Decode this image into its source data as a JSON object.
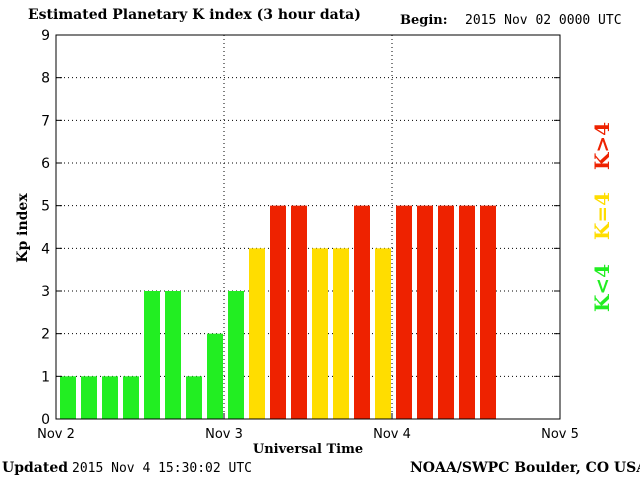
{
  "page": {
    "title": "Estimated Planetary K index (3 hour data)",
    "begin_label": "Begin:",
    "begin_value": "2015 Nov 02 0000 UTC",
    "updated_label": "Updated",
    "updated_value": "2015 Nov  4 15:30:02 UTC",
    "credit": "NOAA/SWPC Boulder, CO USA"
  },
  "key_legend": [
    {
      "label": "K<4",
      "color": "#22ee22"
    },
    {
      "label": "K=4",
      "color": "#ffdd00"
    },
    {
      "label": "K>4",
      "color": "#ee2200"
    }
  ],
  "chart_data": {
    "type": "bar",
    "xlabel": "Universal Time",
    "ylabel": "Kp index",
    "ylim": [
      0,
      9
    ],
    "yticks": [
      0,
      1,
      2,
      3,
      4,
      5,
      6,
      7,
      8,
      9
    ],
    "xticks": [
      "Nov 2",
      "Nov 3",
      "Nov 4",
      "Nov 5"
    ],
    "grid": "dotted",
    "colors": {
      "below": "#22ee22",
      "equal": "#ffdd00",
      "above": "#ee2200"
    },
    "values": [
      1,
      1,
      1,
      1,
      3,
      3,
      1,
      2,
      3,
      4,
      5,
      5,
      4,
      4,
      5,
      4,
      5,
      5,
      5,
      5,
      5
    ]
  }
}
